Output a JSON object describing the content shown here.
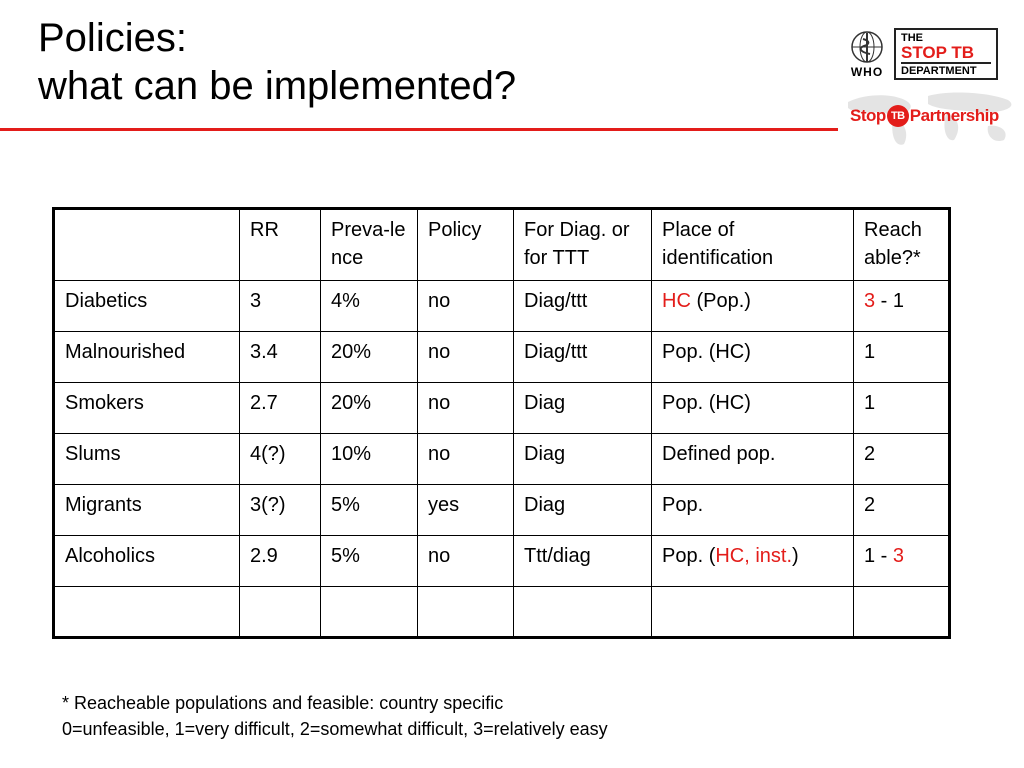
{
  "title": {
    "line1": "Policies:",
    "line2": "what can be implemented?"
  },
  "logos": {
    "who_text": "WHO",
    "dept_line1": "THE",
    "dept_line2": "STOP TB",
    "dept_line3": "DEPARTMENT",
    "partnership_prefix": "Stop",
    "partnership_tb": "TB",
    "partnership_suffix": "Partnership"
  },
  "colors": {
    "accent_red": "#e31d1a"
  },
  "table": {
    "headers": {
      "group": "",
      "rr": "RR",
      "prevalence": "Preva-lence",
      "policy": "Policy",
      "diag": "For Diag. or for TTT",
      "place": "Place of identification",
      "reachable": "Reach able?*"
    },
    "rows": [
      {
        "group": "Diabetics",
        "rr": "3",
        "prevalence": "4%",
        "policy": "no",
        "diag": "Diag/ttt",
        "place_a": "HC",
        "place_b": " (Pop.)",
        "place_c": "",
        "reach_a": "3",
        "reach_b": " - 1",
        "reach_c": ""
      },
      {
        "group": "Malnourished",
        "rr": "3.4",
        "prevalence": "20%",
        "policy": "no",
        "diag": "Diag/ttt",
        "place_a": "",
        "place_b": "Pop. (HC)",
        "place_c": "",
        "reach_a": "",
        "reach_b": "1",
        "reach_c": ""
      },
      {
        "group": "Smokers",
        "rr": "2.7",
        "prevalence": "20%",
        "policy": "no",
        "diag": "Diag",
        "place_a": "",
        "place_b": "Pop. (HC)",
        "place_c": "",
        "reach_a": "",
        "reach_b": "1",
        "reach_c": ""
      },
      {
        "group": "Slums",
        "rr": "4(?)",
        "prevalence": "10%",
        "policy": "no",
        "diag": "Diag",
        "place_a": "",
        "place_b": "Defined pop.",
        "place_c": "",
        "reach_a": "",
        "reach_b": "2",
        "reach_c": ""
      },
      {
        "group": "Migrants",
        "rr": "3(?)",
        "prevalence": "5%",
        "policy": "yes",
        "diag": "Diag",
        "place_a": "",
        "place_b": "Pop.",
        "place_c": "",
        "reach_a": "",
        "reach_b": "2",
        "reach_c": ""
      },
      {
        "group": "Alcoholics",
        "rr": "2.9",
        "prevalence": "5%",
        "policy": "no",
        "diag": "Ttt/diag",
        "place_a": "",
        "place_b": "Pop. (",
        "place_c": "HC, inst.",
        "place_d": ")",
        "reach_a": "",
        "reach_b": "1 - ",
        "reach_c": "3"
      }
    ]
  },
  "footnote": {
    "line1": "* Reacheable populations and feasible: country specific",
    "line2": "0=unfeasible, 1=very difficult, 2=somewhat difficult, 3=relatively easy"
  }
}
